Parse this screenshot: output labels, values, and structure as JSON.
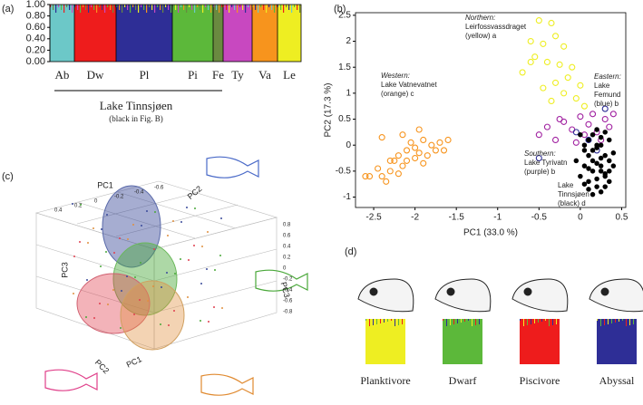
{
  "panels": {
    "a": "(a)",
    "b": "(b)",
    "c": "(c)",
    "d": "(d)"
  },
  "structure": {
    "yticks": [
      {
        "value": 0,
        "label": "0.00"
      },
      {
        "value": 0.2,
        "label": "0.20"
      },
      {
        "value": 0.4,
        "label": "0.40"
      },
      {
        "value": 0.6,
        "label": "0.60"
      },
      {
        "value": 0.8,
        "label": "0.80"
      },
      {
        "value": 1,
        "label": "1.00"
      }
    ],
    "ylim": [
      0,
      1
    ],
    "groups": [
      {
        "name": "Ab",
        "color": "#6cc8c8"
      },
      {
        "name": "Dw",
        "color": "#ee1c1c"
      },
      {
        "name": "Pl",
        "color": "#2e2e96"
      },
      {
        "name": "Pi",
        "color": "#5cb83a"
      },
      {
        "name": "Fe",
        "color": "#6a8a40"
      },
      {
        "name": "Ty",
        "color": "#c848c0"
      },
      {
        "name": "Va",
        "color": "#f7941d"
      },
      {
        "name": "Le",
        "color": "#eeee22"
      }
    ],
    "bracket_label": "Lake Tinnsjøen",
    "bracket_note": "(black in Fig. B)"
  },
  "chart_data": {
    "type": "scatter",
    "xlabel": "PC1 (33.0 %)",
    "ylabel": "PC2 (17.3 %)",
    "xlim": [
      -2.72,
      0.55
    ],
    "ylim": [
      -1.2,
      2.55
    ],
    "xticks": [
      -2.5,
      -2,
      -1.5,
      -1,
      -0.5,
      0,
      0.5
    ],
    "yticks": [
      -1,
      -0.5,
      0,
      0.5,
      1,
      1.5,
      2,
      2.5
    ],
    "series": [
      {
        "color": "#f7941d",
        "filled": false,
        "x": [
          -2.6,
          -2.55,
          -2.45,
          -2.4,
          -2.35,
          -2.3,
          -2.25,
          -2.2,
          -2.2,
          -2.15,
          -2.1,
          -2.1,
          -2.05,
          -2.0,
          -2.0,
          -1.95,
          -1.95,
          -1.9,
          -1.9,
          -1.85,
          -1.8,
          -1.75,
          -1.7,
          -1.65,
          -2.3,
          -2.15,
          -2.4,
          -1.6
        ],
        "values": [
          -0.6,
          -0.6,
          -0.45,
          0.15,
          -0.7,
          -0.5,
          -0.3,
          -0.2,
          -0.55,
          -0.4,
          -0.1,
          -0.3,
          0.05,
          -0.25,
          -0.05,
          0.3,
          -0.15,
          0.1,
          -0.35,
          -0.2,
          0.0,
          -0.1,
          0.05,
          -0.1,
          -0.3,
          0.2,
          -0.6,
          0.1
        ]
      },
      {
        "color": "#eeee22",
        "filled": false,
        "x": [
          -0.5,
          -0.35,
          -0.6,
          -0.45,
          -0.3,
          -0.2,
          -0.55,
          -0.4,
          -0.25,
          -0.1,
          -0.7,
          -0.15,
          -0.3,
          0.0,
          -0.45,
          -0.2,
          -0.05,
          -0.35,
          0.05,
          -0.6
        ],
        "values": [
          2.4,
          2.35,
          2.0,
          1.95,
          2.1,
          1.9,
          1.7,
          1.6,
          1.55,
          1.5,
          1.4,
          1.3,
          1.2,
          1.15,
          1.1,
          1.0,
          0.9,
          0.85,
          0.75,
          1.6
        ]
      },
      {
        "color": "#a020a0",
        "filled": false,
        "x": [
          -0.5,
          -0.4,
          -0.3,
          -0.2,
          -0.1,
          0.0,
          0.1,
          0.2,
          0.3,
          0.35,
          -0.05,
          0.15,
          0.25,
          -0.25,
          0.05,
          0.4
        ],
        "values": [
          0.2,
          0.35,
          0.1,
          0.45,
          0.3,
          0.55,
          0.4,
          0.25,
          0.5,
          0.35,
          0.05,
          0.6,
          0.1,
          0.5,
          0.2,
          0.6
        ]
      },
      {
        "color": "#2e2e96",
        "filled": false,
        "x": [
          -0.5,
          -0.05,
          0.1,
          0.3,
          0.2
        ],
        "values": [
          -0.25,
          0.25,
          0.1,
          0.7,
          -0.1
        ]
      },
      {
        "color": "#000000",
        "filled": true,
        "x": [
          0.0,
          0.05,
          0.1,
          0.15,
          0.2,
          0.25,
          0.3,
          0.35,
          0.4,
          0.0,
          0.05,
          0.1,
          0.15,
          0.2,
          0.25,
          0.3,
          0.35,
          0.05,
          0.1,
          0.15,
          0.2,
          0.25,
          0.3,
          0.35,
          0.1,
          0.15,
          0.2,
          0.25,
          0.3,
          0.2,
          0.15,
          0.25,
          -0.05,
          0.4,
          0.1,
          0.3,
          0.2,
          0.05,
          0.35,
          0.25
        ],
        "values": [
          0.2,
          -0.1,
          0.1,
          -0.3,
          0.0,
          -0.5,
          -0.2,
          0.1,
          -0.4,
          -0.6,
          -0.4,
          -0.7,
          0.2,
          -0.8,
          0.0,
          -0.6,
          -0.3,
          0.0,
          -0.2,
          -0.5,
          -0.35,
          -0.9,
          0.25,
          -0.7,
          -0.85,
          -0.1,
          0.3,
          -0.25,
          -0.55,
          -0.65,
          -0.95,
          0.15,
          -0.3,
          -0.15,
          -0.45,
          -0.8,
          -0.05,
          -0.75,
          -0.5,
          -0.4
        ]
      }
    ],
    "annotations": [
      {
        "lines": [
          "Northern:",
          "Leirfossvassdraget",
          "(yellow) a"
        ],
        "italic_first": true
      },
      {
        "lines": [
          "Eastern:",
          "Lake",
          "Femund",
          "(blue) b"
        ],
        "italic_first": true
      },
      {
        "lines": [
          "Western:",
          "Lake Vatnevatnet",
          "(orange) c"
        ],
        "italic_first": true
      },
      {
        "lines": [
          "Southern:",
          "Lake Tyrivatn",
          "(purple) b"
        ],
        "italic_first": true
      },
      {
        "lines": [
          "Lake",
          "Tinnsjøen",
          "(black) d"
        ],
        "italic_first": false
      }
    ]
  },
  "pca3d": {
    "axis_labels": [
      "PC1",
      "PC2",
      "PC3",
      "PC3",
      "PC1",
      "PC2"
    ],
    "tick_labels": [
      "0.4",
      "0.2",
      "0",
      "-0.2",
      "-0.4",
      "-0.6",
      "0.8",
      "0.6",
      "0.4",
      "0.2",
      "0",
      "-0.2",
      "-0.4",
      "-0.6",
      "-0.8"
    ]
  },
  "ecotypes": [
    {
      "name": "Planktivore",
      "color": "#eeee22"
    },
    {
      "name": "Dwarf",
      "color": "#5cb83a"
    },
    {
      "name": "Piscivore",
      "color": "#ee1c1c"
    },
    {
      "name": "Abyssal",
      "color": "#2e2e96"
    }
  ]
}
